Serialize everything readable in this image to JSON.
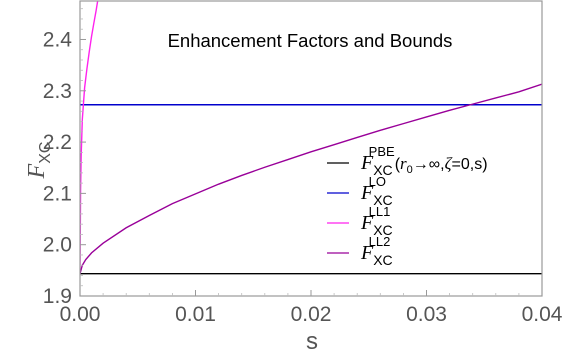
{
  "chart_data": {
    "type": "line",
    "title": "Enhancement Factors and Bounds",
    "xlabel": "s",
    "ylabel": {
      "main": "F",
      "sub": "XC"
    },
    "xlim": [
      0.0,
      0.04
    ],
    "ylim": [
      1.9,
      2.475
    ],
    "x_ticks": [
      0.0,
      0.01,
      0.02,
      0.03,
      0.04
    ],
    "x_tick_labels": [
      "0.00",
      "0.01",
      "0.02",
      "0.03",
      "0.04"
    ],
    "y_ticks": [
      1.9,
      2.0,
      2.1,
      2.2,
      2.3,
      2.4
    ],
    "y_tick_labels": [
      "1.9",
      "2.0",
      "2.1",
      "2.2",
      "2.3",
      "2.4"
    ],
    "grid": false,
    "legend_position": "right",
    "series": [
      {
        "name": "F_XC^PBE(r0→∞,ζ=0,s)",
        "legend": {
          "main": "F",
          "sub": "XC",
          "sup": "PBE",
          "args_open": "(",
          "args_var": "r",
          "args_var_sub": "0",
          "args_rest": "→∞,",
          "args_zeta": "ζ",
          "args_tail": "=0,s)"
        },
        "color": "#000000",
        "x": [
          0.0,
          0.04
        ],
        "y": [
          1.9434,
          1.9434
        ]
      },
      {
        "name": "F_XC^LO",
        "legend": {
          "main": "F",
          "sub": "XC",
          "sup": "LO"
        },
        "color": "#0000cc",
        "x": [
          0.0,
          0.04
        ],
        "y": [
          2.2728,
          2.2728
        ]
      },
      {
        "name": "F_XC^LL1",
        "legend": {
          "main": "F",
          "sub": "XC",
          "sup": "LL1"
        },
        "color": "#ff22ee",
        "x": [
          0.0,
          5e-05,
          0.0001,
          0.0002,
          0.0004,
          0.0006,
          0.0008,
          0.001,
          0.0012,
          0.0014,
          0.0016
        ],
        "y": [
          1.9434,
          2.106,
          2.173,
          2.244,
          2.306,
          2.343,
          2.376,
          2.406,
          2.432,
          2.457,
          2.485
        ]
      },
      {
        "name": "F_XC^LL2",
        "legend": {
          "main": "F",
          "sub": "XC",
          "sup": "LL2"
        },
        "color": "#990099",
        "x": [
          0.0,
          0.0002,
          0.0005,
          0.001,
          0.002,
          0.004,
          0.006,
          0.008,
          0.01,
          0.012,
          0.014,
          0.016,
          0.018,
          0.02,
          0.022,
          0.024,
          0.026,
          0.028,
          0.03,
          0.032,
          0.034,
          0.036,
          0.038,
          0.04
        ],
        "y": [
          1.9434,
          1.96,
          1.971,
          1.984,
          2.003,
          2.033,
          2.057,
          2.08,
          2.099,
          2.118,
          2.135,
          2.151,
          2.166,
          2.181,
          2.195,
          2.209,
          2.223,
          2.236,
          2.249,
          2.262,
          2.274,
          2.286,
          2.298,
          2.313
        ]
      }
    ]
  }
}
